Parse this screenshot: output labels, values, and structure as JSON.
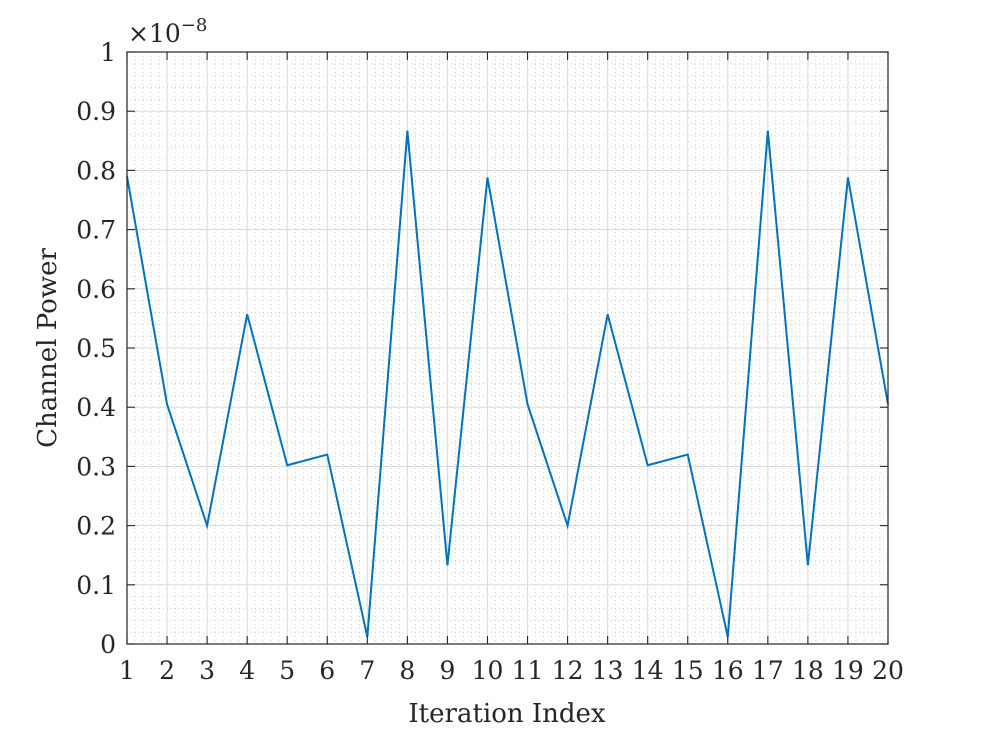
{
  "chart_data": {
    "type": "line",
    "title": "",
    "xlabel": "Iteration Index",
    "ylabel": "Channel Power",
    "y_exponent_base": "×10",
    "y_exponent_power": "−8",
    "x": [
      1,
      2,
      3,
      4,
      5,
      6,
      7,
      8,
      9,
      10,
      11,
      12,
      13,
      14,
      15,
      16,
      17,
      18,
      19,
      20
    ],
    "series": [
      {
        "values": [
          0.79,
          0.405,
          0.2,
          0.557,
          0.302,
          0.32,
          0.012,
          0.867,
          0.133,
          0.788,
          0.405,
          0.2,
          0.557,
          0.302,
          0.32,
          0.012,
          0.867,
          0.133,
          0.788,
          0.405
        ],
        "color": "#0072BD"
      }
    ],
    "xlim": [
      1,
      20
    ],
    "ylim": [
      0,
      1
    ],
    "xticks": [
      "1",
      "2",
      "3",
      "4",
      "5",
      "6",
      "7",
      "8",
      "9",
      "10",
      "11",
      "12",
      "13",
      "14",
      "15",
      "16",
      "17",
      "18",
      "19",
      "20"
    ],
    "yticks": [
      "0",
      "0.1",
      "0.2",
      "0.3",
      "0.4",
      "0.5",
      "0.6",
      "0.7",
      "0.8",
      "0.9",
      "1"
    ],
    "grid": true,
    "minor_grid": true
  }
}
